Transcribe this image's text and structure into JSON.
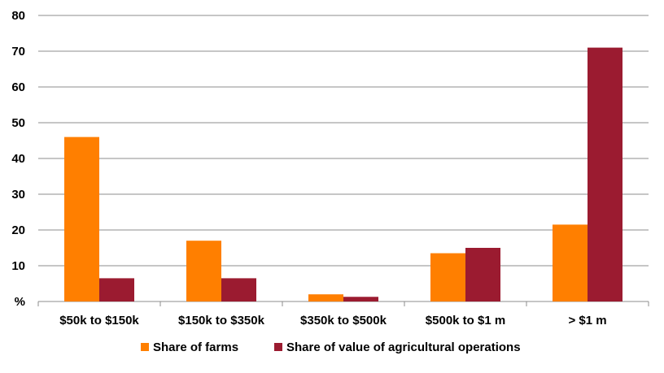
{
  "chart_data": {
    "type": "bar",
    "categories": [
      "$50k to $150k",
      "$150k to $350k",
      "$350k to $500k",
      "$500k to $1 m",
      "> $1 m"
    ],
    "series": [
      {
        "name": "Share of farms",
        "color": "#ff7f00",
        "values": [
          46,
          17,
          2,
          13.5,
          21.5
        ]
      },
      {
        "name": "Share of value of agricultural operations",
        "color": "#9b1b30",
        "values": [
          6.5,
          6.5,
          1.3,
          15,
          71
        ]
      }
    ],
    "ylabel": "%",
    "yticks": [
      "%",
      "10",
      "20",
      "30",
      "40",
      "50",
      "60",
      "70",
      "80"
    ],
    "ylim": [
      0,
      80
    ],
    "grid": true,
    "legend_position": "bottom"
  }
}
